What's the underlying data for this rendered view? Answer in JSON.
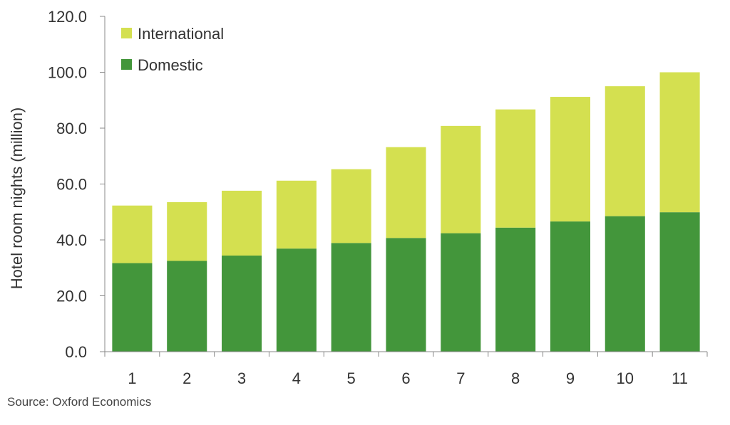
{
  "chart_data": {
    "type": "bar",
    "stacked": true,
    "categories": [
      "1",
      "2",
      "3",
      "4",
      "5",
      "6",
      "7",
      "8",
      "9",
      "10",
      "11"
    ],
    "series": [
      {
        "name": "Domestic",
        "color": "#43963B",
        "values": [
          31.7,
          32.5,
          34.4,
          36.9,
          38.9,
          40.7,
          42.4,
          44.4,
          46.6,
          48.5,
          49.9
        ]
      },
      {
        "name": "International",
        "color": "#D4E050",
        "values": [
          20.6,
          21.0,
          23.2,
          24.3,
          26.4,
          32.5,
          38.4,
          42.3,
          44.6,
          46.5,
          50.1
        ]
      }
    ],
    "title": "",
    "xlabel": "",
    "ylabel": "Hotel room nights (million)",
    "ylim": [
      0,
      120
    ],
    "yticks": [
      "0.0",
      "20.0",
      "40.0",
      "60.0",
      "80.0",
      "100.0",
      "120.0"
    ],
    "grid": false,
    "legend": {
      "position": "top-left",
      "order": [
        "International",
        "Domestic"
      ]
    }
  },
  "source": "Source:  Oxford Economics"
}
